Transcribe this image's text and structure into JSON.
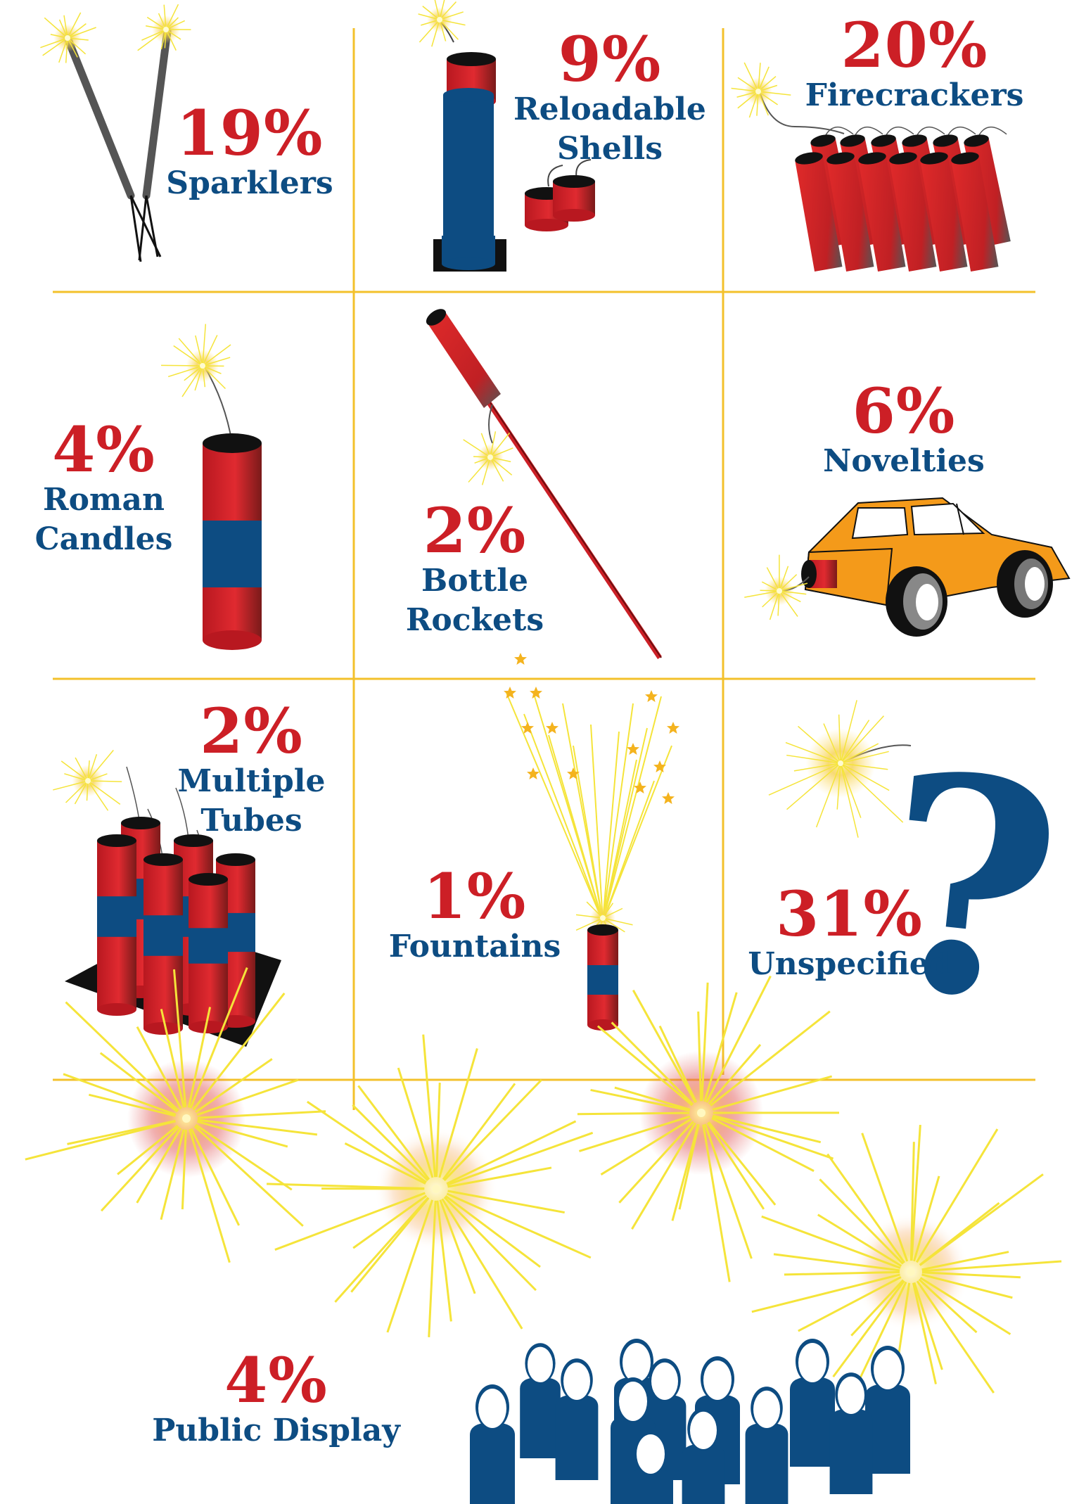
{
  "colors": {
    "red": "#cc1f26",
    "blue": "#0d4c82",
    "grid": "#f3c12b",
    "spark": "#f7e62a",
    "car": "#f49a1a"
  },
  "items": [
    {
      "id": "sparklers",
      "percent": "19%",
      "label_lines": [
        "Sparklers"
      ],
      "share": 19,
      "icon": "sparkler-icon"
    },
    {
      "id": "reloadable-shells",
      "percent": "9%",
      "label_lines": [
        "Reloadable",
        "Shells"
      ],
      "share": 9,
      "icon": "mortar-shell-icon"
    },
    {
      "id": "firecrackers",
      "percent": "20%",
      "label_lines": [
        "Firecrackers"
      ],
      "share": 20,
      "icon": "firecracker-string-icon"
    },
    {
      "id": "roman-candles",
      "percent": "4%",
      "label_lines": [
        "Roman",
        "Candles"
      ],
      "share": 4,
      "icon": "roman-candle-icon"
    },
    {
      "id": "bottle-rockets",
      "percent": "2%",
      "label_lines": [
        "Bottle",
        "Rockets"
      ],
      "share": 2,
      "icon": "bottle-rocket-icon"
    },
    {
      "id": "novelties",
      "percent": "6%",
      "label_lines": [
        "Novelties"
      ],
      "share": 6,
      "icon": "novelty-car-icon"
    },
    {
      "id": "multiple-tubes",
      "percent": "2%",
      "label_lines": [
        "Multiple",
        "Tubes"
      ],
      "share": 2,
      "icon": "multiple-tubes-icon"
    },
    {
      "id": "fountains",
      "percent": "1%",
      "label_lines": [
        "Fountains"
      ],
      "share": 1,
      "icon": "fountain-icon"
    },
    {
      "id": "unspecified",
      "percent": "31%",
      "label_lines": [
        "Unspecified"
      ],
      "share": 31,
      "icon": "question-mark-icon"
    },
    {
      "id": "public-display",
      "percent": "4%",
      "label_lines": [
        "Public Display"
      ],
      "share": 4,
      "icon": "crowd-icon"
    }
  ]
}
